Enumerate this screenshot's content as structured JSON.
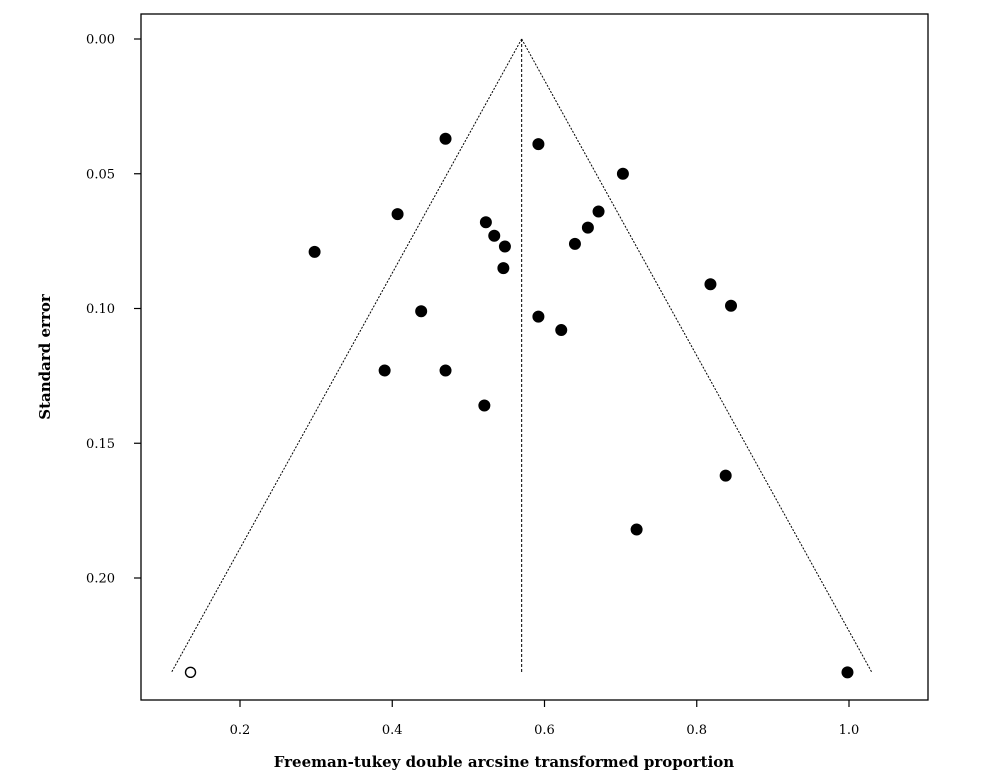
{
  "chart_data": {
    "type": "scatter",
    "title": "",
    "xlabel": "Freeman-tukey double arcsine transformed proportion",
    "ylabel": "Standard error",
    "xlim": [
      0.07,
      1.08
    ],
    "ylim": [
      0.0,
      0.245
    ],
    "y_inverted": true,
    "grid": false,
    "legend": "none",
    "x_ticks": [
      "0.2",
      "0.4",
      "0.6",
      "0.8",
      "1.0"
    ],
    "y_ticks": [
      "0.00",
      "0.05",
      "0.10",
      "0.15",
      "0.20"
    ],
    "pooled_estimate": 0.57,
    "funnel": {
      "apex": [
        0.57,
        0.0
      ],
      "left_base": [
        0.11,
        0.235
      ],
      "right_base": [
        1.03,
        0.235
      ],
      "center_line_bottom": [
        0.57,
        0.235
      ]
    },
    "series": [
      {
        "marker": "filled",
        "points": [
          {
            "x": 0.47,
            "y": 0.037
          },
          {
            "x": 0.592,
            "y": 0.039
          },
          {
            "x": 0.703,
            "y": 0.05
          },
          {
            "x": 0.407,
            "y": 0.065
          },
          {
            "x": 0.671,
            "y": 0.064
          },
          {
            "x": 0.523,
            "y": 0.068
          },
          {
            "x": 0.657,
            "y": 0.07
          },
          {
            "x": 0.534,
            "y": 0.073
          },
          {
            "x": 0.548,
            "y": 0.077
          },
          {
            "x": 0.64,
            "y": 0.076
          },
          {
            "x": 0.298,
            "y": 0.079
          },
          {
            "x": 0.546,
            "y": 0.085
          },
          {
            "x": 0.818,
            "y": 0.091
          },
          {
            "x": 0.845,
            "y": 0.099
          },
          {
            "x": 0.438,
            "y": 0.101
          },
          {
            "x": 0.592,
            "y": 0.103
          },
          {
            "x": 0.622,
            "y": 0.108
          },
          {
            "x": 0.39,
            "y": 0.123
          },
          {
            "x": 0.47,
            "y": 0.123
          },
          {
            "x": 0.521,
            "y": 0.136
          },
          {
            "x": 0.838,
            "y": 0.162
          },
          {
            "x": 0.721,
            "y": 0.182
          },
          {
            "x": 0.998,
            "y": 0.235
          }
        ]
      },
      {
        "marker": "hollow",
        "points": [
          {
            "x": 0.135,
            "y": 0.235
          }
        ]
      }
    ]
  }
}
